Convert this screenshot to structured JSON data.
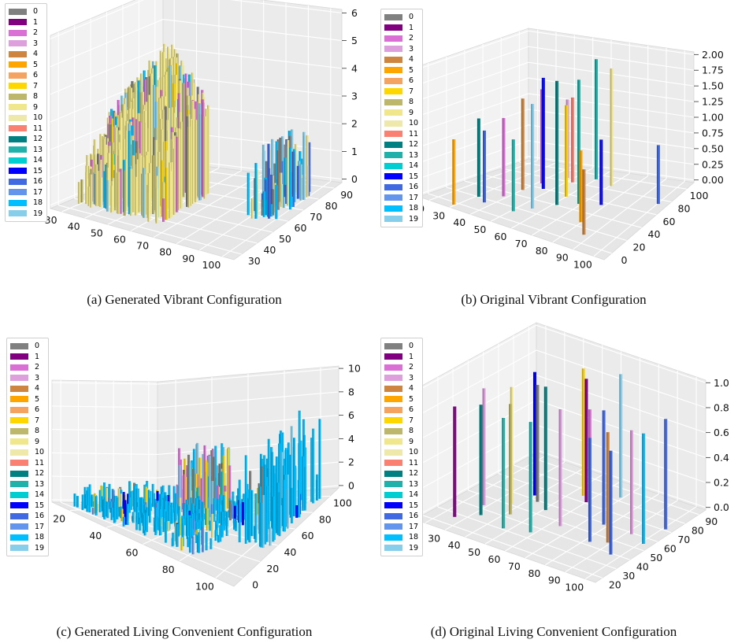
{
  "palette": [
    "#808080",
    "#800080",
    "#da70d6",
    "#dda0dd",
    "#cd853f",
    "#ffa500",
    "#f4a460",
    "#ffd700",
    "#bdb76b",
    "#f0e68c",
    "#eee8aa",
    "#fa8072",
    "#008080",
    "#20b2aa",
    "#00ced1",
    "#0000ff",
    "#4169e1",
    "#6495ed",
    "#00bfff",
    "#87ceeb"
  ],
  "legend_labels": [
    "0",
    "1",
    "2",
    "3",
    "4",
    "5",
    "6",
    "7",
    "8",
    "9",
    "10",
    "11",
    "12",
    "13",
    "14",
    "15",
    "16",
    "17",
    "18",
    "19"
  ],
  "chart_data": [
    {
      "type": "bar3d",
      "caption": "(a)  Generated Vibrant Configuration",
      "x_ticks": [
        "30",
        "40",
        "50",
        "60",
        "70",
        "80",
        "90",
        "100"
      ],
      "y_ticks": [
        "30",
        "40",
        "50",
        "60",
        "70",
        "80",
        "90"
      ],
      "z_ticks": [
        "0",
        "1",
        "2",
        "3",
        "4",
        "5",
        "6"
      ],
      "xlim": [
        30,
        100
      ],
      "ylim": [
        30,
        95
      ],
      "zlim": [
        0,
        6
      ],
      "legend": [
        "0",
        "1",
        "2",
        "3",
        "4",
        "5",
        "6",
        "7",
        "8",
        "9",
        "10",
        "11",
        "12",
        "13",
        "14",
        "15",
        "16",
        "17",
        "18",
        "19"
      ]
    },
    {
      "type": "bar3d",
      "caption": "(b)  Original Vibrant Configuration",
      "x_ticks": [
        "20",
        "30",
        "40",
        "50",
        "60",
        "70",
        "80",
        "90",
        "100"
      ],
      "y_ticks": [
        "0",
        "20",
        "40",
        "60",
        "80",
        "100"
      ],
      "z_ticks": [
        "0.00",
        "0.25",
        "0.50",
        "0.75",
        "1.00",
        "1.25",
        "1.50",
        "1.75",
        "2.00"
      ],
      "xlim": [
        20,
        100
      ],
      "ylim": [
        0,
        100
      ],
      "zlim": [
        0,
        2
      ],
      "legend": [
        "0",
        "1",
        "2",
        "3",
        "4",
        "5",
        "6",
        "7",
        "8",
        "9",
        "10",
        "11",
        "12",
        "13",
        "14",
        "15",
        "16",
        "17",
        "18",
        "19"
      ]
    },
    {
      "type": "bar3d",
      "caption": "(c)  Generated Living Convenient Configuration",
      "x_ticks": [
        "20",
        "40",
        "60",
        "80",
        "100"
      ],
      "y_ticks": [
        "0",
        "20",
        "40",
        "60",
        "80",
        "100"
      ],
      "z_ticks": [
        "0",
        "2",
        "4",
        "6",
        "8",
        "10"
      ],
      "xlim": [
        10,
        105
      ],
      "ylim": [
        0,
        105
      ],
      "zlim": [
        0,
        10
      ],
      "legend": [
        "0",
        "1",
        "2",
        "3",
        "4",
        "5",
        "6",
        "7",
        "8",
        "9",
        "10",
        "11",
        "12",
        "13",
        "14",
        "15",
        "16",
        "17",
        "18",
        "19"
      ]
    },
    {
      "type": "bar3d",
      "caption": "(d)  Original Living Convenient Configuration",
      "x_ticks": [
        "20",
        "30",
        "40",
        "50",
        "60",
        "70",
        "80",
        "90",
        "100"
      ],
      "y_ticks": [
        "20",
        "30",
        "40",
        "50",
        "60",
        "70",
        "80",
        "90"
      ],
      "z_ticks": [
        "0.0",
        "0.2",
        "0.4",
        "0.6",
        "0.8",
        "1.0"
      ],
      "xlim": [
        20,
        100
      ],
      "ylim": [
        20,
        90
      ],
      "zlim": [
        0,
        1
      ],
      "legend": [
        "0",
        "1",
        "2",
        "3",
        "4",
        "5",
        "6",
        "7",
        "8",
        "9",
        "10",
        "11",
        "12",
        "13",
        "14",
        "15",
        "16",
        "17",
        "18",
        "19"
      ]
    }
  ]
}
